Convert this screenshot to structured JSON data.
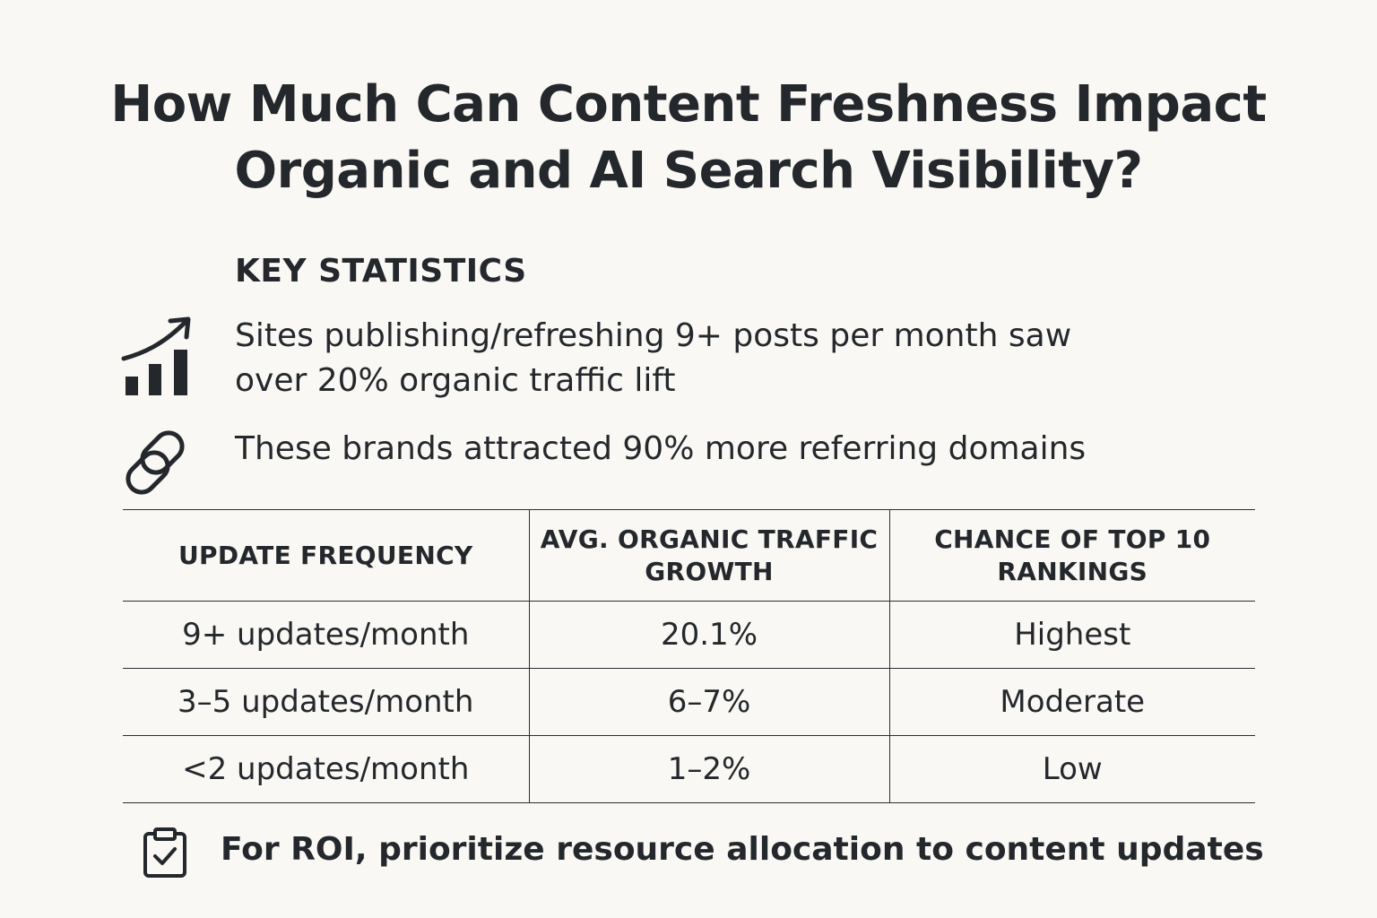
{
  "title": {
    "line1": "How Much Can Content Freshness Impact",
    "line2": "Organic and AI Search Visibility?"
  },
  "key_statistics": {
    "heading": "KEY STATISTICS",
    "items": [
      {
        "icon": "bar-chart-trend-up-icon",
        "text": "Sites publishing/refreshing 9+ posts per month saw over 20% organic traffic lift"
      },
      {
        "icon": "link-icon",
        "text": "These brands attracted 90% more referring domains"
      }
    ]
  },
  "table": {
    "headers": [
      "UPDATE FREQUENCY",
      "AVG. ORGANIC TRAFFIC GROWTH",
      "CHANCE OF TOP 10 RANKINGS"
    ],
    "rows": [
      [
        "9+ updates/month",
        "20.1%",
        "Highest"
      ],
      [
        "3–5 updates/month",
        "6–7%",
        "Moderate"
      ],
      [
        "<2 updates/month",
        "1–2%",
        "Low"
      ]
    ]
  },
  "callout": {
    "icon": "clipboard-check-icon",
    "text": "For ROI, prioritize resource allocation to content updates"
  },
  "colors": {
    "background": "#faf8f4",
    "text": "#24282c"
  }
}
